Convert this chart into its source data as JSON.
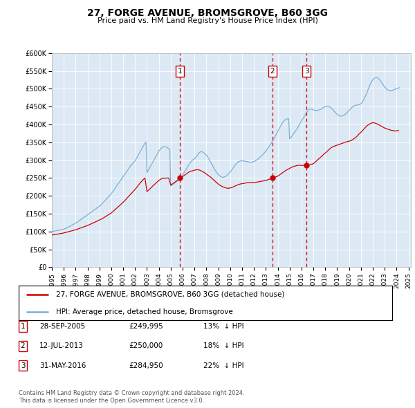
{
  "title": "27, FORGE AVENUE, BROMSGROVE, B60 3GG",
  "subtitle": "Price paid vs. HM Land Registry's House Price Index (HPI)",
  "background_color": "#dce9f5",
  "plot_bg_color": "#dce9f5",
  "ylim": [
    0,
    600000
  ],
  "yticks": [
    0,
    50000,
    100000,
    150000,
    200000,
    250000,
    300000,
    350000,
    400000,
    450000,
    500000,
    550000,
    600000
  ],
  "ytick_labels": [
    "£0",
    "£50K",
    "£100K",
    "£150K",
    "£200K",
    "£250K",
    "£300K",
    "£350K",
    "£400K",
    "£450K",
    "£500K",
    "£550K",
    "£600K"
  ],
  "red_line_color": "#cc0000",
  "blue_line_color": "#7ab0d4",
  "vline_color": "#cc0000",
  "marker_box_color": "#cc0000",
  "dot_color": "#cc0000",
  "transactions": [
    {
      "num": 1,
      "date": "28-SEP-2005",
      "price": 249995,
      "year": 2005.75,
      "price_str": "£249,995",
      "pct": "13%"
    },
    {
      "num": 2,
      "date": "12-JUL-2013",
      "price": 250000,
      "year": 2013.54,
      "price_str": "£250,000",
      "pct": "18%"
    },
    {
      "num": 3,
      "date": "31-MAY-2016",
      "price": 284950,
      "year": 2016.42,
      "price_str": "£284,950",
      "pct": "22%"
    }
  ],
  "legend_line1": "27, FORGE AVENUE, BROMSGROVE, B60 3GG (detached house)",
  "legend_line2": "HPI: Average price, detached house, Bromsgrove",
  "footer1": "Contains HM Land Registry data © Crown copyright and database right 2024.",
  "footer2": "This data is licensed under the Open Government Licence v3.0.",
  "hpi_data_years": [
    1995.0,
    1995.08,
    1995.17,
    1995.25,
    1995.33,
    1995.42,
    1995.5,
    1995.58,
    1995.67,
    1995.75,
    1995.83,
    1995.92,
    1996.0,
    1996.08,
    1996.17,
    1996.25,
    1996.33,
    1996.42,
    1996.5,
    1996.58,
    1996.67,
    1996.75,
    1996.83,
    1996.92,
    1997.0,
    1997.08,
    1997.17,
    1997.25,
    1997.33,
    1997.42,
    1997.5,
    1997.58,
    1997.67,
    1997.75,
    1997.83,
    1997.92,
    1998.0,
    1998.08,
    1998.17,
    1998.25,
    1998.33,
    1998.42,
    1998.5,
    1998.58,
    1998.67,
    1998.75,
    1998.83,
    1998.92,
    1999.0,
    1999.08,
    1999.17,
    1999.25,
    1999.33,
    1999.42,
    1999.5,
    1999.58,
    1999.67,
    1999.75,
    1999.83,
    1999.92,
    2000.0,
    2000.08,
    2000.17,
    2000.25,
    2000.33,
    2000.42,
    2000.5,
    2000.58,
    2000.67,
    2000.75,
    2000.83,
    2000.92,
    2001.0,
    2001.08,
    2001.17,
    2001.25,
    2001.33,
    2001.42,
    2001.5,
    2001.58,
    2001.67,
    2001.75,
    2001.83,
    2001.92,
    2002.0,
    2002.08,
    2002.17,
    2002.25,
    2002.33,
    2002.42,
    2002.5,
    2002.58,
    2002.67,
    2002.75,
    2002.83,
    2002.92,
    2003.0,
    2003.08,
    2003.17,
    2003.25,
    2003.33,
    2003.42,
    2003.5,
    2003.58,
    2003.67,
    2003.75,
    2003.83,
    2003.92,
    2004.0,
    2004.08,
    2004.17,
    2004.25,
    2004.33,
    2004.42,
    2004.5,
    2004.58,
    2004.67,
    2004.75,
    2004.83,
    2004.92,
    2005.0,
    2005.08,
    2005.17,
    2005.25,
    2005.33,
    2005.42,
    2005.5,
    2005.58,
    2005.67,
    2005.75,
    2005.83,
    2005.92,
    2006.0,
    2006.08,
    2006.17,
    2006.25,
    2006.33,
    2006.42,
    2006.5,
    2006.58,
    2006.67,
    2006.75,
    2006.83,
    2006.92,
    2007.0,
    2007.08,
    2007.17,
    2007.25,
    2007.33,
    2007.42,
    2007.5,
    2007.58,
    2007.67,
    2007.75,
    2007.83,
    2007.92,
    2008.0,
    2008.08,
    2008.17,
    2008.25,
    2008.33,
    2008.42,
    2008.5,
    2008.58,
    2008.67,
    2008.75,
    2008.83,
    2008.92,
    2009.0,
    2009.08,
    2009.17,
    2009.25,
    2009.33,
    2009.42,
    2009.5,
    2009.58,
    2009.67,
    2009.75,
    2009.83,
    2009.92,
    2010.0,
    2010.08,
    2010.17,
    2010.25,
    2010.33,
    2010.42,
    2010.5,
    2010.58,
    2010.67,
    2010.75,
    2010.83,
    2010.92,
    2011.0,
    2011.08,
    2011.17,
    2011.25,
    2011.33,
    2011.42,
    2011.5,
    2011.58,
    2011.67,
    2011.75,
    2011.83,
    2011.92,
    2012.0,
    2012.08,
    2012.17,
    2012.25,
    2012.33,
    2012.42,
    2012.5,
    2012.58,
    2012.67,
    2012.75,
    2012.83,
    2012.92,
    2013.0,
    2013.08,
    2013.17,
    2013.25,
    2013.33,
    2013.42,
    2013.5,
    2013.58,
    2013.67,
    2013.75,
    2013.83,
    2013.92,
    2014.0,
    2014.08,
    2014.17,
    2014.25,
    2014.33,
    2014.42,
    2014.5,
    2014.58,
    2014.67,
    2014.75,
    2014.83,
    2014.92,
    2015.0,
    2015.08,
    2015.17,
    2015.25,
    2015.33,
    2015.42,
    2015.5,
    2015.58,
    2015.67,
    2015.75,
    2015.83,
    2015.92,
    2016.0,
    2016.08,
    2016.17,
    2016.25,
    2016.33,
    2016.42,
    2016.5,
    2016.58,
    2016.67,
    2016.75,
    2016.83,
    2016.92,
    2017.0,
    2017.08,
    2017.17,
    2017.25,
    2017.33,
    2017.42,
    2017.5,
    2017.58,
    2017.67,
    2017.75,
    2017.83,
    2017.92,
    2018.0,
    2018.08,
    2018.17,
    2018.25,
    2018.33,
    2018.42,
    2018.5,
    2018.58,
    2018.67,
    2018.75,
    2018.83,
    2018.92,
    2019.0,
    2019.08,
    2019.17,
    2019.25,
    2019.33,
    2019.42,
    2019.5,
    2019.58,
    2019.67,
    2019.75,
    2019.83,
    2019.92,
    2020.0,
    2020.08,
    2020.17,
    2020.25,
    2020.33,
    2020.42,
    2020.5,
    2020.58,
    2020.67,
    2020.75,
    2020.83,
    2020.92,
    2021.0,
    2021.08,
    2021.17,
    2021.25,
    2021.33,
    2021.42,
    2021.5,
    2021.58,
    2021.67,
    2021.75,
    2021.83,
    2021.92,
    2022.0,
    2022.08,
    2022.17,
    2022.25,
    2022.33,
    2022.42,
    2022.5,
    2022.58,
    2022.67,
    2022.75,
    2022.83,
    2022.92,
    2023.0,
    2023.08,
    2023.17,
    2023.25,
    2023.33,
    2023.42,
    2023.5,
    2023.58,
    2023.67,
    2023.75,
    2023.83,
    2023.92,
    2024.0,
    2024.08,
    2024.17,
    2024.25
  ],
  "hpi_data_values": [
    100000,
    100500,
    101000,
    101500,
    102000,
    102500,
    103000,
    103500,
    104000,
    104500,
    105000,
    106000,
    107000,
    108000,
    109000,
    110000,
    111500,
    113000,
    114500,
    116000,
    117500,
    119000,
    120500,
    122000,
    123500,
    125000,
    127000,
    129000,
    131000,
    133000,
    135000,
    137000,
    139000,
    141000,
    143000,
    145000,
    147000,
    149000,
    151000,
    153000,
    155000,
    157000,
    159000,
    161000,
    163000,
    165000,
    167000,
    169000,
    171000,
    173000,
    176000,
    179000,
    182000,
    185000,
    188000,
    191000,
    194000,
    197000,
    200000,
    203000,
    206000,
    210000,
    214000,
    218000,
    222000,
    226000,
    230000,
    234000,
    238000,
    242000,
    246000,
    250000,
    254000,
    258000,
    262000,
    266000,
    270000,
    274000,
    278000,
    282000,
    286000,
    289000,
    292000,
    295000,
    298000,
    303000,
    308000,
    313000,
    318000,
    323000,
    328000,
    333000,
    338000,
    343000,
    347000,
    351000,
    265000,
    270000,
    275000,
    280000,
    285000,
    290000,
    295000,
    300000,
    305000,
    310000,
    315000,
    320000,
    325000,
    329000,
    332000,
    335000,
    337000,
    338000,
    338000,
    337000,
    336000,
    334000,
    332000,
    330000,
    228000,
    230000,
    232000,
    234000,
    236000,
    238000,
    240000,
    243000,
    246000,
    249000,
    252000,
    255000,
    259000,
    263000,
    267000,
    271000,
    276000,
    281000,
    286000,
    290000,
    294000,
    297000,
    300000,
    302000,
    304000,
    307000,
    310000,
    314000,
    318000,
    321000,
    323000,
    324000,
    323000,
    321000,
    319000,
    317000,
    314000,
    310000,
    306000,
    301000,
    296000,
    291000,
    286000,
    281000,
    276000,
    271000,
    267000,
    263000,
    260000,
    257000,
    255000,
    253000,
    252000,
    252000,
    253000,
    254000,
    256000,
    258000,
    261000,
    264000,
    267000,
    270000,
    274000,
    278000,
    282000,
    286000,
    289000,
    292000,
    294000,
    296000,
    297000,
    298000,
    298000,
    298000,
    297000,
    297000,
    296000,
    296000,
    295000,
    295000,
    294000,
    294000,
    294000,
    295000,
    296000,
    297000,
    299000,
    301000,
    303000,
    305000,
    308000,
    310000,
    313000,
    316000,
    319000,
    322000,
    325000,
    329000,
    333000,
    337000,
    341000,
    346000,
    350000,
    355000,
    360000,
    365000,
    370000,
    375000,
    380000,
    386000,
    391000,
    396000,
    401000,
    405000,
    409000,
    412000,
    414000,
    415000,
    416000,
    416000,
    360000,
    363000,
    366000,
    370000,
    374000,
    378000,
    382000,
    386000,
    391000,
    395000,
    400000,
    405000,
    410000,
    414000,
    419000,
    423000,
    428000,
    433000,
    437000,
    440000,
    442000,
    443000,
    443000,
    442000,
    441000,
    440000,
    439000,
    439000,
    439000,
    440000,
    441000,
    442000,
    443000,
    445000,
    447000,
    449000,
    450000,
    451000,
    451000,
    451000,
    450000,
    448000,
    446000,
    443000,
    440000,
    437000,
    434000,
    431000,
    428000,
    426000,
    424000,
    423000,
    423000,
    424000,
    425000,
    426000,
    428000,
    430000,
    433000,
    436000,
    439000,
    442000,
    445000,
    448000,
    450000,
    452000,
    453000,
    454000,
    454000,
    455000,
    455000,
    456000,
    458000,
    461000,
    465000,
    470000,
    476000,
    482000,
    489000,
    496000,
    503000,
    510000,
    516000,
    521000,
    525000,
    528000,
    530000,
    531000,
    531000,
    530000,
    528000,
    525000,
    521000,
    517000,
    513000,
    509000,
    505000,
    502000,
    499000,
    497000,
    496000,
    495000,
    495000,
    495000,
    496000,
    497000,
    498000,
    499000,
    500000,
    501000,
    502000,
    503000
  ],
  "prop_data_years": [
    1995.0,
    1995.17,
    1995.33,
    1995.5,
    1995.67,
    1995.83,
    1996.0,
    1996.17,
    1996.33,
    1996.5,
    1996.67,
    1996.83,
    1997.0,
    1997.17,
    1997.33,
    1997.5,
    1997.67,
    1997.83,
    1998.0,
    1998.17,
    1998.33,
    1998.5,
    1998.67,
    1998.83,
    1999.0,
    1999.17,
    1999.33,
    1999.5,
    1999.67,
    1999.83,
    2000.0,
    2000.17,
    2000.33,
    2000.5,
    2000.67,
    2000.83,
    2001.0,
    2001.17,
    2001.33,
    2001.5,
    2001.67,
    2001.83,
    2002.0,
    2002.17,
    2002.33,
    2002.5,
    2002.67,
    2002.83,
    2003.0,
    2003.17,
    2003.33,
    2003.5,
    2003.67,
    2003.83,
    2004.0,
    2004.17,
    2004.33,
    2004.5,
    2004.67,
    2004.83,
    2005.0,
    2005.17,
    2005.33,
    2005.5,
    2005.67,
    2005.75,
    2006.0,
    2006.17,
    2006.33,
    2006.5,
    2006.67,
    2006.83,
    2007.0,
    2007.17,
    2007.33,
    2007.5,
    2007.67,
    2007.83,
    2008.0,
    2008.17,
    2008.33,
    2008.5,
    2008.67,
    2008.83,
    2009.0,
    2009.17,
    2009.33,
    2009.5,
    2009.67,
    2009.83,
    2010.0,
    2010.17,
    2010.33,
    2010.5,
    2010.67,
    2010.83,
    2011.0,
    2011.17,
    2011.33,
    2011.5,
    2011.67,
    2011.83,
    2012.0,
    2012.17,
    2012.33,
    2012.5,
    2012.67,
    2012.83,
    2013.0,
    2013.17,
    2013.33,
    2013.54,
    2014.0,
    2014.17,
    2014.33,
    2014.5,
    2014.67,
    2014.83,
    2015.0,
    2015.17,
    2015.33,
    2015.5,
    2015.67,
    2015.83,
    2016.0,
    2016.17,
    2016.33,
    2016.42,
    2017.0,
    2017.17,
    2017.33,
    2017.5,
    2017.67,
    2017.83,
    2018.0,
    2018.17,
    2018.33,
    2018.5,
    2018.67,
    2018.83,
    2019.0,
    2019.17,
    2019.33,
    2019.5,
    2019.67,
    2019.83,
    2020.0,
    2020.17,
    2020.33,
    2020.5,
    2020.67,
    2020.83,
    2021.0,
    2021.17,
    2021.33,
    2021.5,
    2021.67,
    2021.83,
    2022.0,
    2022.17,
    2022.33,
    2022.5,
    2022.67,
    2022.83,
    2023.0,
    2023.17,
    2023.33,
    2023.5,
    2023.67,
    2023.83,
    2024.0,
    2024.17
  ],
  "prop_data_values": [
    90000,
    91000,
    92000,
    93000,
    94000,
    95000,
    96000,
    97500,
    99000,
    100500,
    102000,
    103500,
    105000,
    107000,
    109000,
    111000,
    113000,
    115000,
    117000,
    119500,
    122000,
    124500,
    127000,
    129500,
    132000,
    135000,
    138000,
    141500,
    145000,
    148500,
    152000,
    157000,
    162000,
    167000,
    172000,
    177000,
    182000,
    188000,
    194000,
    200000,
    206000,
    212000,
    218000,
    225000,
    232000,
    239000,
    245000,
    250000,
    212000,
    217000,
    222000,
    228000,
    233000,
    238000,
    243000,
    247000,
    249000,
    249500,
    249800,
    250000,
    230000,
    234000,
    238000,
    242000,
    246000,
    249995,
    254000,
    258000,
    262000,
    266000,
    269000,
    270000,
    272000,
    273000,
    273000,
    271000,
    268000,
    265000,
    261000,
    257000,
    253000,
    248000,
    243000,
    238000,
    233000,
    229000,
    226000,
    224000,
    222000,
    221000,
    222000,
    224000,
    226000,
    229000,
    231000,
    233000,
    234000,
    235000,
    236000,
    237000,
    237000,
    237000,
    237000,
    238000,
    239000,
    240000,
    241000,
    242000,
    243000,
    245000,
    247000,
    250000,
    255000,
    259000,
    263000,
    267000,
    271000,
    274000,
    277000,
    280000,
    282000,
    284000,
    285000,
    286000,
    285000,
    285500,
    284950,
    284950,
    290000,
    295000,
    300000,
    305000,
    310000,
    315000,
    320000,
    325000,
    330000,
    335000,
    338000,
    340000,
    342000,
    344000,
    346000,
    348000,
    350000,
    352000,
    353000,
    355000,
    358000,
    362000,
    367000,
    373000,
    378000,
    384000,
    390000,
    396000,
    400000,
    403000,
    405000,
    404000,
    402000,
    399000,
    396000,
    393000,
    390000,
    388000,
    386000,
    384000,
    383000,
    382000,
    382000,
    383000
  ]
}
